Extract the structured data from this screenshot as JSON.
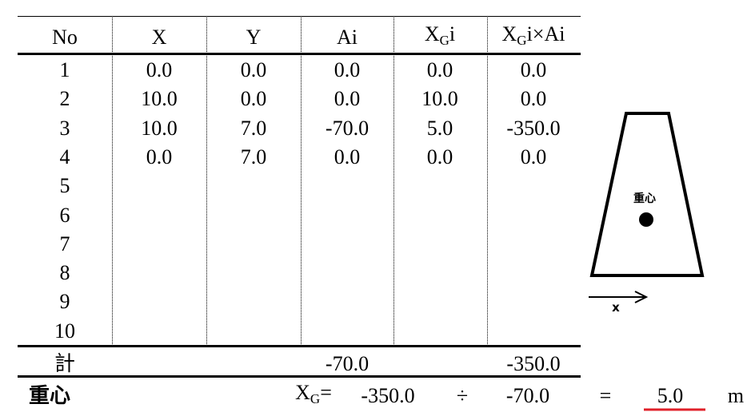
{
  "table": {
    "header": [
      "No",
      "X",
      "Y",
      "Ai",
      {
        "main": "X",
        "sub": "G",
        "tail": "i"
      },
      {
        "main": "X",
        "sub": "G",
        "tail": "i×Ai"
      }
    ],
    "rows": [
      {
        "no": "1",
        "cells": [
          "0.0",
          "0.0",
          "0.0",
          "0.0",
          "0.0"
        ]
      },
      {
        "no": "2",
        "cells": [
          "10.0",
          "0.0",
          "0.0",
          "10.0",
          "0.0"
        ]
      },
      {
        "no": "3",
        "cells": [
          "10.0",
          "7.0",
          "-70.0",
          "5.0",
          "-350.0"
        ]
      },
      {
        "no": "4",
        "cells": [
          "0.0",
          "7.0",
          "0.0",
          "0.0",
          "0.0"
        ]
      },
      {
        "no": "5"
      },
      {
        "no": "6"
      },
      {
        "no": "7"
      },
      {
        "no": "8"
      },
      {
        "no": "9"
      },
      {
        "no": "10"
      }
    ],
    "total": {
      "label": "計",
      "ai": "-70.0",
      "xgiai": "-350.0"
    }
  },
  "result": {
    "label": "重心",
    "symbol": "X",
    "sub": "G",
    "eq1": "=",
    "numerator": "-350.0",
    "op": "÷",
    "denominator": "-70.0",
    "eq2": "=",
    "value": "5.0",
    "unit": "m"
  },
  "diagram": {
    "label": "重心",
    "axis": "x"
  }
}
